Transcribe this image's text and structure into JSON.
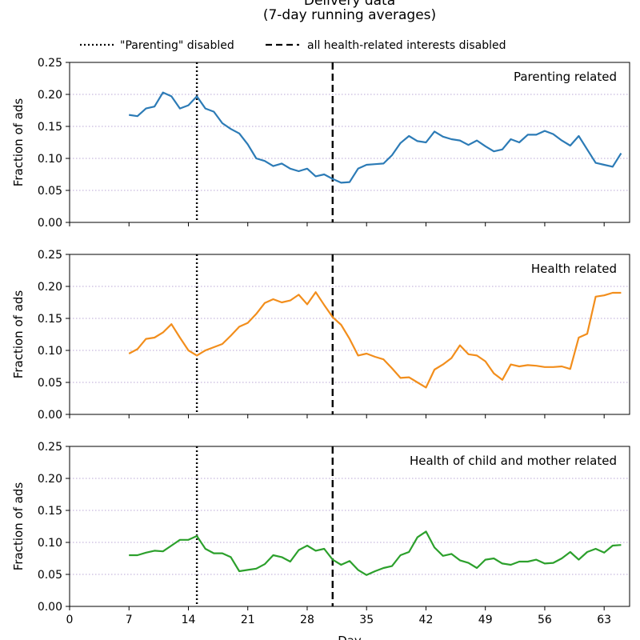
{
  "chart_data": {
    "type": "line",
    "title": [
      "Delivery data",
      "(7-day running averages)"
    ],
    "xlabel": "Day",
    "xlim": [
      0,
      66
    ],
    "xticks": [
      0,
      7,
      14,
      21,
      28,
      35,
      42,
      49,
      56,
      63
    ],
    "ylim": [
      0,
      0.25
    ],
    "yticks": [
      "0.00",
      "0.05",
      "0.10",
      "0.15",
      "0.20",
      "0.25"
    ],
    "grid": "horizontal-dotted",
    "legend": {
      "placement": "top",
      "entries": [
        {
          "label": "\"Parenting\" disabled",
          "style": "dotted",
          "x": 15
        },
        {
          "label": "all health-related interests disabled",
          "style": "dashed",
          "x": 31
        }
      ]
    },
    "x": [
      7,
      8,
      9,
      10,
      11,
      12,
      13,
      14,
      15,
      16,
      17,
      18,
      19,
      20,
      21,
      22,
      23,
      24,
      25,
      26,
      27,
      28,
      29,
      30,
      31,
      32,
      33,
      34,
      35,
      36,
      37,
      38,
      39,
      40,
      41,
      42,
      43,
      44,
      45,
      46,
      47,
      48,
      49,
      50,
      51,
      52,
      53,
      54,
      55,
      56,
      57,
      58,
      59,
      60,
      61,
      62,
      63,
      64,
      65
    ],
    "panels": [
      {
        "label": "Parenting related",
        "ylabel": "Fraction of ads",
        "color": "#2c7bb6",
        "values": [
          0.168,
          0.166,
          0.178,
          0.181,
          0.203,
          0.197,
          0.178,
          0.183,
          0.197,
          0.178,
          0.173,
          0.155,
          0.146,
          0.139,
          0.122,
          0.1,
          0.096,
          0.088,
          0.092,
          0.084,
          0.08,
          0.084,
          0.072,
          0.075,
          0.068,
          0.062,
          0.063,
          0.084,
          0.09,
          0.091,
          0.092,
          0.105,
          0.124,
          0.135,
          0.127,
          0.125,
          0.142,
          0.134,
          0.13,
          0.128,
          0.121,
          0.128,
          0.119,
          0.111,
          0.114,
          0.13,
          0.125,
          0.137,
          0.137,
          0.143,
          0.138,
          0.128,
          0.12,
          0.135,
          0.114,
          0.093,
          0.09,
          0.087,
          0.108
        ]
      },
      {
        "label": "Health related",
        "ylabel": "Fraction of ads",
        "color": "#f28e1c",
        "values": [
          0.095,
          0.102,
          0.118,
          0.12,
          0.128,
          0.141,
          0.12,
          0.1,
          0.092,
          0.1,
          0.105,
          0.11,
          0.123,
          0.137,
          0.143,
          0.157,
          0.174,
          0.18,
          0.175,
          0.178,
          0.187,
          0.172,
          0.191,
          0.171,
          0.152,
          0.14,
          0.118,
          0.092,
          0.095,
          0.09,
          0.086,
          0.072,
          0.057,
          0.058,
          0.05,
          0.042,
          0.07,
          0.078,
          0.088,
          0.108,
          0.094,
          0.092,
          0.083,
          0.064,
          0.054,
          0.078,
          0.075,
          0.077,
          0.076,
          0.074,
          0.074,
          0.075,
          0.071,
          0.12,
          0.126,
          0.184,
          0.186,
          0.19,
          0.19
        ]
      },
      {
        "label": "Health of child and mother related",
        "ylabel": "Fraction of ads",
        "color": "#2ca02c",
        "values": [
          0.08,
          0.08,
          0.084,
          0.087,
          0.086,
          0.095,
          0.104,
          0.104,
          0.11,
          0.09,
          0.083,
          0.083,
          0.077,
          0.055,
          0.057,
          0.059,
          0.066,
          0.08,
          0.077,
          0.07,
          0.088,
          0.095,
          0.087,
          0.09,
          0.073,
          0.065,
          0.071,
          0.057,
          0.049,
          0.055,
          0.06,
          0.063,
          0.08,
          0.085,
          0.108,
          0.117,
          0.092,
          0.079,
          0.082,
          0.072,
          0.068,
          0.06,
          0.073,
          0.075,
          0.067,
          0.065,
          0.07,
          0.07,
          0.073,
          0.067,
          0.068,
          0.075,
          0.085,
          0.073,
          0.085,
          0.09,
          0.084,
          0.095,
          0.096
        ]
      }
    ]
  }
}
